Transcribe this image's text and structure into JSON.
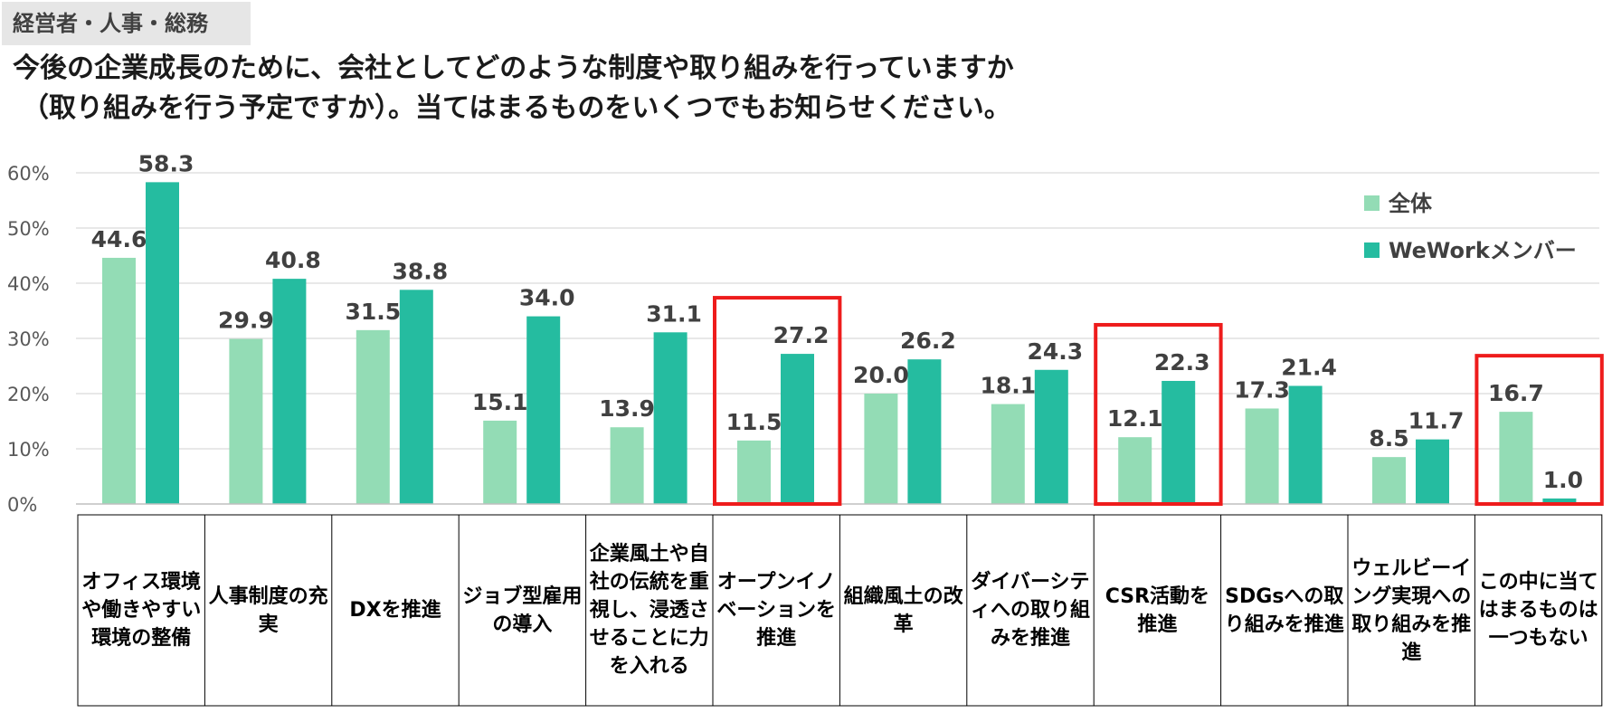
{
  "badge": "経営者・人事・総務",
  "title_line1": "今後の企業成長のために、会社としてどのような制度や取り組みを行っていますか",
  "title_line2": "（取り組みを行う予定ですか）。当てはまるものをいくつでもお知らせください。",
  "chart_data": {
    "type": "bar",
    "y_ticks": [
      "0%",
      "10%",
      "20%",
      "30%",
      "40%",
      "50%",
      "60%"
    ],
    "ylim": [
      0,
      60
    ],
    "grid": true,
    "legend_position": "top-right",
    "categories": [
      "オフィス環境や働きやすい環境の整備",
      "人事制度の充実",
      "DXを推進",
      "ジョブ型雇用の導入",
      "企業風土や自社の伝統を重視し、浸透させることに力を入れる",
      "オープンイノベーションを推進",
      "組織風土の改革",
      "ダイバーシティへの取り組みを推進",
      "CSR活動を推進",
      "SDGsへの取り組みを推進",
      "ウェルビーイング実現への取り組みを推進",
      "この中に当てはまるものは一つもない"
    ],
    "series": [
      {
        "name": "全体",
        "color": "#93dcb5",
        "values": [
          44.6,
          29.9,
          31.5,
          15.1,
          13.9,
          11.5,
          20.0,
          18.1,
          12.1,
          17.3,
          8.5,
          16.7
        ],
        "labels": [
          "44.6",
          "29.9",
          "31.5",
          "15.1",
          "13.9",
          "11.5",
          "20.0",
          "18.1",
          "12.1",
          "17.3",
          "8.5",
          "16.7"
        ]
      },
      {
        "name": "WeWorkメンバー",
        "color": "#25bca0",
        "values": [
          58.3,
          40.8,
          38.8,
          34.0,
          31.1,
          27.2,
          26.2,
          24.3,
          22.3,
          21.4,
          11.7,
          1.0
        ],
        "labels": [
          "58.3",
          "40.8",
          "38.8",
          "34.0",
          "31.1",
          "27.2",
          "26.2",
          "24.3",
          "22.3",
          "21.4",
          "11.7",
          "1.0"
        ]
      }
    ],
    "highlighted_categories": [
      5,
      8,
      11
    ],
    "highlight_color": "#ee1c1c"
  }
}
